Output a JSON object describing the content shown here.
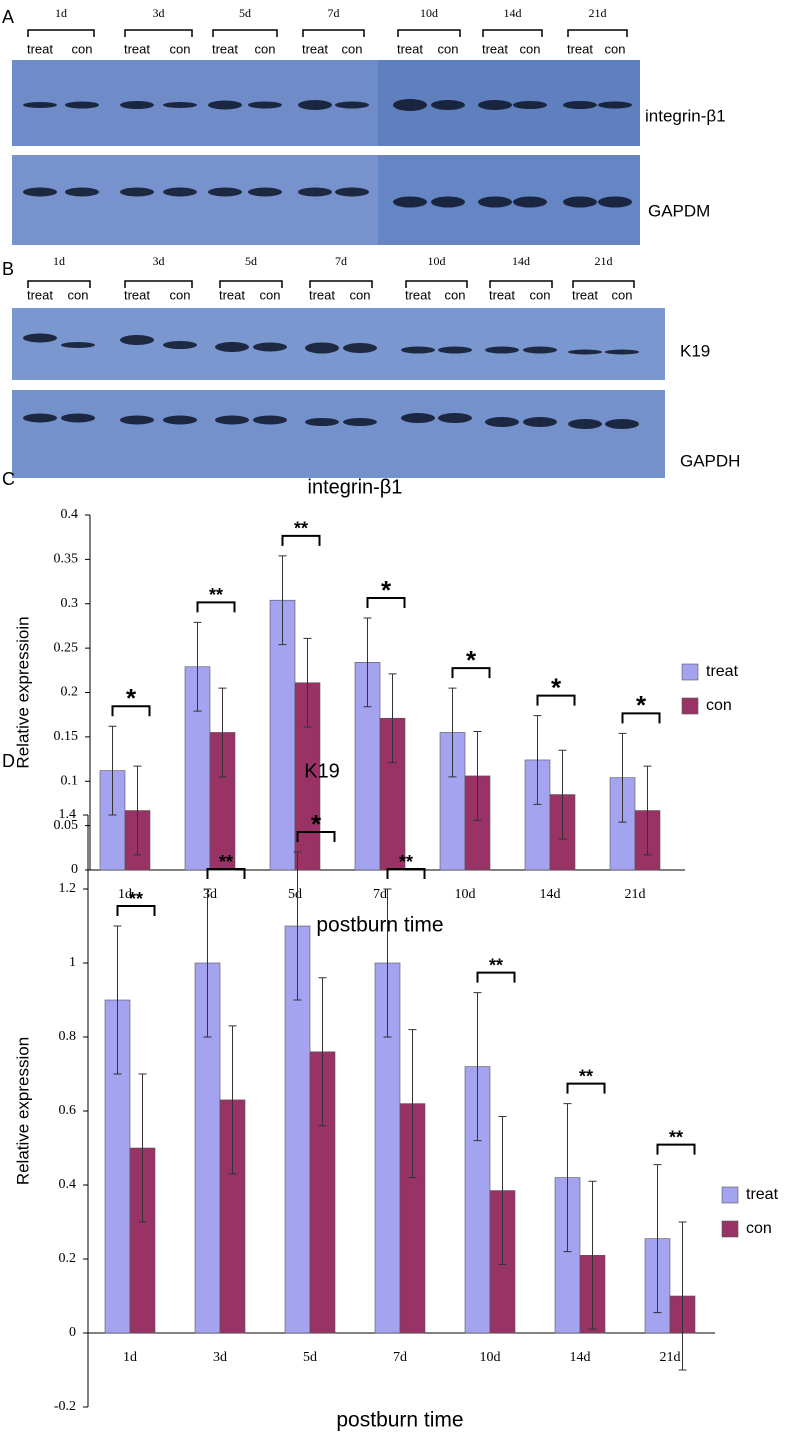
{
  "panels": {
    "A": {
      "letter": "A",
      "times": [
        "1d",
        "3d",
        "5d",
        "7d",
        "10d",
        "14d",
        "21d"
      ],
      "lanes": [
        "treat",
        "con"
      ],
      "proteins": [
        "integrin-β1",
        "GAPDM"
      ]
    },
    "B": {
      "letter": "B",
      "times": [
        "1d",
        "3d",
        "5d",
        "7d",
        "10d",
        "14d",
        "21d"
      ],
      "lanes": [
        "treat",
        "con"
      ],
      "proteins": [
        "K19",
        "GAPDH"
      ]
    }
  },
  "chart_data": [
    {
      "type": "bar",
      "panel": "C",
      "title": "integrin-β1",
      "y_label": "Relative expressioin",
      "x_label": "postburn time",
      "categories": [
        "1d",
        "3d",
        "5d",
        "7d",
        "10d",
        "14d",
        "21d"
      ],
      "series": [
        {
          "name": "treat",
          "color": "#a3a3f0",
          "values": [
            0.112,
            0.229,
            0.304,
            0.234,
            0.155,
            0.124,
            0.104
          ],
          "errors": [
            0.05,
            0.05,
            0.05,
            0.05,
            0.05,
            0.05,
            0.05
          ]
        },
        {
          "name": "con",
          "color": "#993366",
          "values": [
            0.067,
            0.155,
            0.211,
            0.171,
            0.106,
            0.085,
            0.067
          ],
          "errors": [
            0.05,
            0.05,
            0.05,
            0.05,
            0.05,
            0.05,
            0.05
          ]
        }
      ],
      "annotations": [
        "*",
        "**",
        "**",
        "*",
        "*",
        "*",
        "*"
      ],
      "ylim": [
        0,
        0.4
      ],
      "yticks": [
        0,
        0.05,
        0.1,
        0.15,
        0.2,
        0.25,
        0.3,
        0.35,
        0.4
      ],
      "grid": false,
      "legend": "right"
    },
    {
      "type": "bar",
      "panel": "D",
      "title": "K19",
      "y_label": "Relative expression",
      "x_label": "postburn time",
      "categories": [
        "1d",
        "3d",
        "5d",
        "7d",
        "10d",
        "14d",
        "21d"
      ],
      "series": [
        {
          "name": "treat",
          "color": "#a3a3f0",
          "values": [
            0.9,
            1.0,
            1.1,
            1.0,
            0.72,
            0.42,
            0.255
          ],
          "errors": [
            0.2,
            0.2,
            0.2,
            0.2,
            0.2,
            0.2,
            0.2
          ]
        },
        {
          "name": "con",
          "color": "#993366",
          "values": [
            0.5,
            0.63,
            0.76,
            0.62,
            0.385,
            0.21,
            0.1
          ],
          "errors": [
            0.2,
            0.2,
            0.2,
            0.2,
            0.2,
            0.2,
            0.2
          ]
        }
      ],
      "annotations": [
        "**",
        "**",
        "*",
        "**",
        "**",
        "**",
        "**"
      ],
      "ylim": [
        -0.2,
        1.4
      ],
      "yticks": [
        -0.2,
        0,
        0.2,
        0.4,
        0.6,
        0.8,
        1,
        1.2,
        1.4
      ],
      "grid": false,
      "legend": "right"
    }
  ]
}
